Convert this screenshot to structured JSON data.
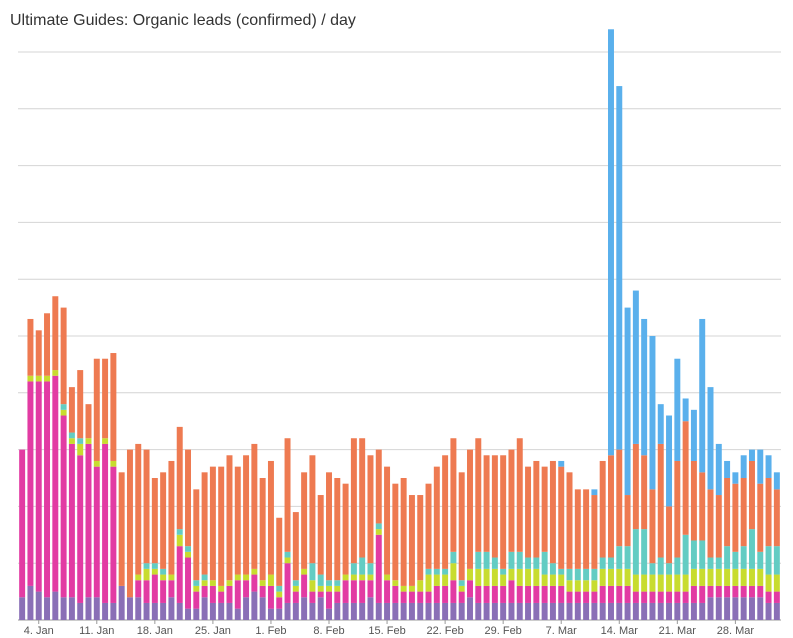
{
  "chart_data": {
    "type": "bar",
    "stacked": true,
    "title": "Ultimate Guides: Organic leads (confirmed) / day",
    "xlabel": "",
    "ylabel": "",
    "grid": true,
    "legend": "none",
    "x_tick_labels": [
      "4. Jan",
      "11. Jan",
      "18. Jan",
      "25. Jan",
      "1. Feb",
      "8. Feb",
      "15. Feb",
      "22. Feb",
      "29. Feb",
      "7. Mar",
      "14. Mar",
      "21. Mar",
      "28. Mar"
    ],
    "series": [
      {
        "color": "#8a6fb6",
        "values": [
          4,
          6,
          5,
          4,
          5,
          4,
          4,
          3,
          4,
          4,
          3,
          3,
          6,
          4,
          4,
          3,
          3,
          3,
          4,
          3,
          2,
          2,
          4,
          3,
          3,
          3,
          2,
          4,
          5,
          4,
          2,
          2,
          3,
          3,
          4,
          3,
          4,
          2,
          3,
          3,
          3,
          3,
          4,
          3,
          3,
          3,
          3,
          3,
          3,
          3,
          3,
          3,
          3,
          3,
          4,
          3,
          3,
          3,
          3,
          3,
          3,
          3,
          3,
          3,
          3,
          3,
          3,
          3,
          3,
          3,
          3,
          3,
          3,
          3,
          3,
          3,
          3,
          3,
          3,
          3,
          3,
          3,
          3,
          4,
          4,
          4,
          4,
          4,
          4,
          4,
          3,
          3
        ]
      },
      {
        "color": "#e23ba3",
        "values": [
          26,
          36,
          37,
          38,
          38,
          32,
          27,
          26,
          27,
          23,
          28,
          24,
          0,
          0,
          3,
          4,
          5,
          4,
          3,
          10,
          9,
          3,
          2,
          3,
          2,
          3,
          5,
          3,
          3,
          2,
          4,
          2,
          7,
          2,
          4,
          2,
          1,
          3,
          2,
          4,
          4,
          4,
          3,
          12,
          4,
          3,
          2,
          2,
          2,
          2,
          3,
          3,
          4,
          2,
          3,
          3,
          3,
          3,
          3,
          4,
          3,
          3,
          3,
          3,
          3,
          3,
          2,
          2,
          2,
          2,
          3,
          3,
          3,
          3,
          2,
          2,
          2,
          2,
          2,
          2,
          2,
          3,
          3,
          2,
          2,
          2,
          2,
          2,
          2,
          2,
          2,
          2
        ]
      },
      {
        "color": "#c8dc2f",
        "values": [
          0,
          1,
          1,
          1,
          1,
          1,
          1,
          2,
          1,
          1,
          1,
          1,
          0,
          0,
          1,
          2,
          1,
          1,
          1,
          2,
          1,
          1,
          1,
          1,
          1,
          1,
          1,
          1,
          1,
          1,
          2,
          1,
          1,
          1,
          1,
          2,
          1,
          1,
          1,
          1,
          1,
          1,
          1,
          1,
          1,
          1,
          1,
          1,
          2,
          3,
          2,
          2,
          3,
          1,
          2,
          3,
          3,
          3,
          2,
          2,
          3,
          3,
          3,
          2,
          2,
          2,
          2,
          2,
          2,
          2,
          3,
          3,
          3,
          3,
          3,
          3,
          3,
          3,
          3,
          3,
          3,
          3,
          3,
          3,
          3,
          3,
          3,
          3,
          3,
          3,
          3,
          3
        ]
      },
      {
        "color": "#63ccc3",
        "values": [
          0,
          0,
          0,
          0,
          0,
          1,
          1,
          1,
          0,
          0,
          0,
          0,
          0,
          0,
          0,
          1,
          1,
          1,
          0,
          1,
          1,
          1,
          1,
          0,
          0,
          0,
          0,
          0,
          0,
          0,
          0,
          1,
          1,
          1,
          0,
          3,
          2,
          1,
          1,
          0,
          2,
          3,
          2,
          1,
          0,
          0,
          0,
          0,
          0,
          1,
          1,
          1,
          2,
          1,
          0,
          3,
          3,
          2,
          1,
          3,
          3,
          2,
          2,
          4,
          2,
          1,
          2,
          2,
          2,
          2,
          2,
          2,
          4,
          4,
          8,
          8,
          2,
          3,
          2,
          3,
          7,
          5,
          5,
          2,
          2,
          4,
          3,
          4,
          7,
          3,
          5,
          5
        ]
      },
      {
        "color": "#ee7a51",
        "values": [
          0,
          10,
          8,
          11,
          13,
          17,
          8,
          12,
          6,
          18,
          14,
          19,
          20,
          26,
          23,
          20,
          15,
          17,
          20,
          18,
          17,
          16,
          18,
          20,
          21,
          22,
          19,
          21,
          22,
          18,
          20,
          12,
          20,
          12,
          17,
          19,
          14,
          19,
          18,
          16,
          22,
          21,
          19,
          13,
          19,
          17,
          19,
          16,
          15,
          15,
          18,
          20,
          20,
          19,
          21,
          20,
          17,
          18,
          20,
          18,
          20,
          16,
          17,
          15,
          18,
          18,
          17,
          14,
          14,
          13,
          17,
          18,
          17,
          9,
          15,
          13,
          13,
          20,
          10,
          17,
          20,
          14,
          12,
          12,
          11,
          12,
          12,
          12,
          12,
          12,
          12,
          10
        ]
      },
      {
        "color": "#5ab0ec",
        "values": [
          0,
          0,
          0,
          0,
          0,
          0,
          0,
          0,
          0,
          0,
          0,
          0,
          0,
          0,
          0,
          0,
          0,
          0,
          0,
          0,
          0,
          0,
          0,
          0,
          0,
          0,
          0,
          0,
          0,
          0,
          0,
          0,
          0,
          0,
          0,
          0,
          0,
          0,
          0,
          0,
          0,
          0,
          0,
          0,
          0,
          0,
          0,
          0,
          0,
          0,
          0,
          0,
          0,
          0,
          0,
          0,
          0,
          0,
          0,
          0,
          0,
          0,
          0,
          0,
          0,
          1,
          0,
          0,
          0,
          1,
          0,
          75,
          64,
          33,
          27,
          24,
          27,
          7,
          16,
          18,
          4,
          9,
          27,
          18,
          9,
          3,
          2,
          4,
          2,
          6,
          4,
          3
        ]
      }
    ],
    "bar_count": 92,
    "ylim": [
      0,
      100
    ],
    "y_gridlines": [
      0,
      10,
      20,
      30,
      40,
      50,
      60,
      70,
      80,
      90,
      100
    ]
  }
}
